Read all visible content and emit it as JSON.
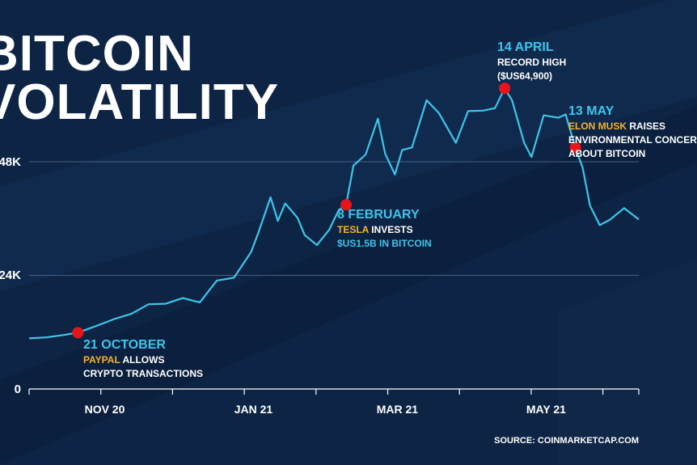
{
  "title_lines": [
    "BITCOIN",
    "VOLATILITY"
  ],
  "source": "SOURCE: COINMARKETCAP.COM",
  "colors": {
    "background": "#0d2444",
    "line": "#3ec5ea",
    "marker": "#e8141b",
    "highlight": "#f5b32d",
    "text": "#ffffff"
  },
  "chart_data": {
    "type": "line",
    "title": "BITCOIN VOLATILITY",
    "y_ticks": [
      "0",
      "24K",
      "48K"
    ],
    "y_tick_values": [
      0,
      24000,
      48000
    ],
    "x_ticks": [
      "NOV 20",
      "JAN 21",
      "MAR 21",
      "MAY 21"
    ],
    "x_tick_dates": [
      "2020-11-01",
      "2021-01-01",
      "2021-03-01",
      "2021-05-01"
    ],
    "ylim": [
      0,
      48000
    ],
    "xlim": [
      "2020-10-01",
      "2021-06-08"
    ],
    "grid": "horizontal",
    "series": [
      {
        "x": [
          "2020-10-01",
          "2020-10-08",
          "2020-10-15",
          "2020-10-21",
          "2020-10-28",
          "2020-11-05",
          "2020-11-12",
          "2020-11-19",
          "2020-11-26",
          "2020-12-03",
          "2020-12-10",
          "2020-12-17",
          "2020-12-24",
          "2020-12-31",
          "2021-01-03",
          "2021-01-08",
          "2021-01-11",
          "2021-01-14",
          "2021-01-19",
          "2021-01-22",
          "2021-01-27",
          "2021-02-01",
          "2021-02-05",
          "2021-02-08",
          "2021-02-11",
          "2021-02-16",
          "2021-02-21",
          "2021-02-24",
          "2021-02-28",
          "2021-03-03",
          "2021-03-07",
          "2021-03-13",
          "2021-03-18",
          "2021-03-25",
          "2021-03-30",
          "2021-04-05",
          "2021-04-10",
          "2021-04-14",
          "2021-04-17",
          "2021-04-22",
          "2021-04-25",
          "2021-04-30",
          "2021-05-06",
          "2021-05-09",
          "2021-05-13",
          "2021-05-16",
          "2021-05-19",
          "2021-05-23",
          "2021-05-27",
          "2021-06-02",
          "2021-06-08"
        ],
        "values": [
          10700,
          10900,
          11400,
          11900,
          13200,
          14800,
          15900,
          17900,
          18000,
          19200,
          18300,
          22900,
          23500,
          28900,
          33000,
          40500,
          35500,
          39200,
          36200,
          32500,
          30400,
          33600,
          37800,
          38900,
          47200,
          49500,
          57100,
          49700,
          45300,
          50500,
          51000,
          61000,
          58300,
          52000,
          58700,
          58800,
          59300,
          63500,
          61000,
          52000,
          49000,
          57800,
          57300,
          58000,
          51000,
          46700,
          38700,
          34600,
          35700,
          38200,
          35800
        ]
      }
    ],
    "annotations": [
      {
        "date": "2020-10-21",
        "value": 11900,
        "label_date": "21 OCTOBER",
        "highlight": "PAYPAL",
        "text": [
          " ALLOWS",
          "CRYPTO TRANSACTIONS"
        ]
      },
      {
        "date": "2021-02-08",
        "value": 38900,
        "label_date": "8 FEBRUARY",
        "highlight": "TESLA",
        "text": [
          " INVESTS",
          "$US1.5B IN BITCOIN"
        ]
      },
      {
        "date": "2021-04-14",
        "value": 63500,
        "label_date": "14 APRIL",
        "highlight": "",
        "text": [
          "RECORD HIGH",
          "($US64,900)"
        ]
      },
      {
        "date": "2021-05-13",
        "value": 51000,
        "label_date": "13 MAY",
        "highlight": "ELON MUSK",
        "text": [
          " RAISES",
          "ENVIRONMENTAL CONCERNS",
          "ABOUT BITCOIN"
        ]
      }
    ]
  }
}
